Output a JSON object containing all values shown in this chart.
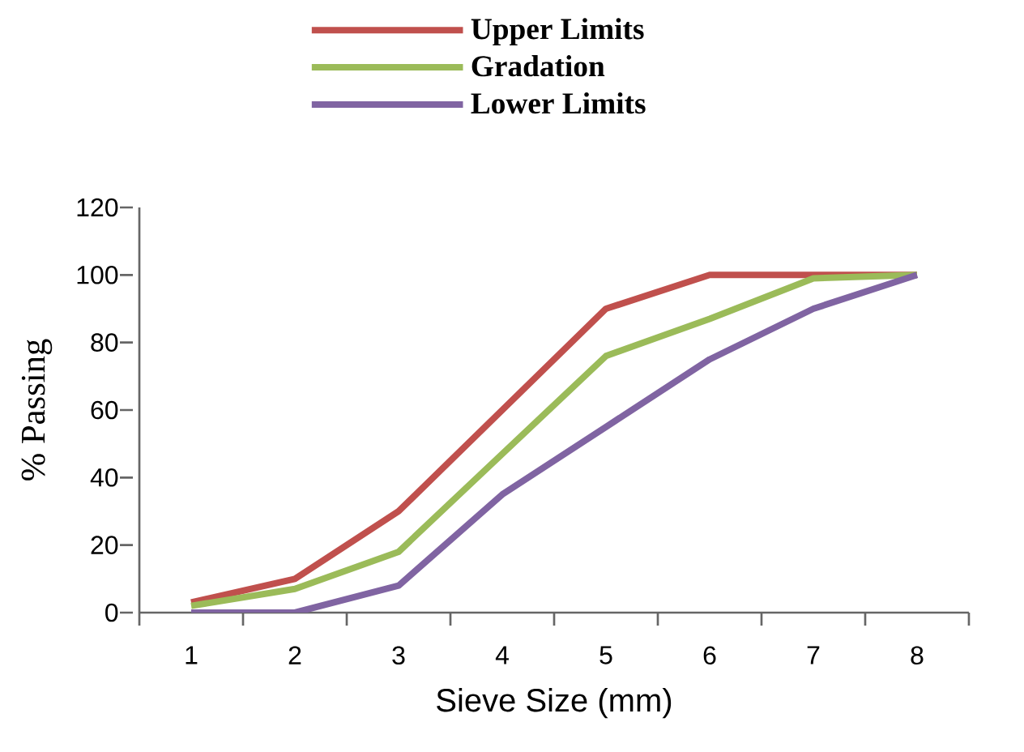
{
  "chart_data": {
    "type": "line",
    "xlabel": "Sieve Size (mm)",
    "ylabel": "% Passing",
    "categories": [
      "1",
      "2",
      "3",
      "4",
      "5",
      "6",
      "7",
      "8"
    ],
    "series": [
      {
        "name": "Upper Limits",
        "color": "#c0504d",
        "values": [
          3,
          10,
          30,
          60,
          90,
          100,
          100,
          100
        ]
      },
      {
        "name": "Gradation",
        "color": "#9bbb59",
        "values": [
          2,
          7,
          18,
          47,
          76,
          87,
          99,
          100
        ]
      },
      {
        "name": "Lower Limits",
        "color": "#8064a2",
        "values": [
          0,
          0,
          8,
          35,
          55,
          75,
          90,
          100
        ]
      }
    ],
    "ylim": [
      0,
      120
    ],
    "yticks": [
      0,
      20,
      40,
      60,
      80,
      100,
      120
    ],
    "legend": "top",
    "grid": false,
    "marker": "none",
    "line_style": "solid"
  }
}
